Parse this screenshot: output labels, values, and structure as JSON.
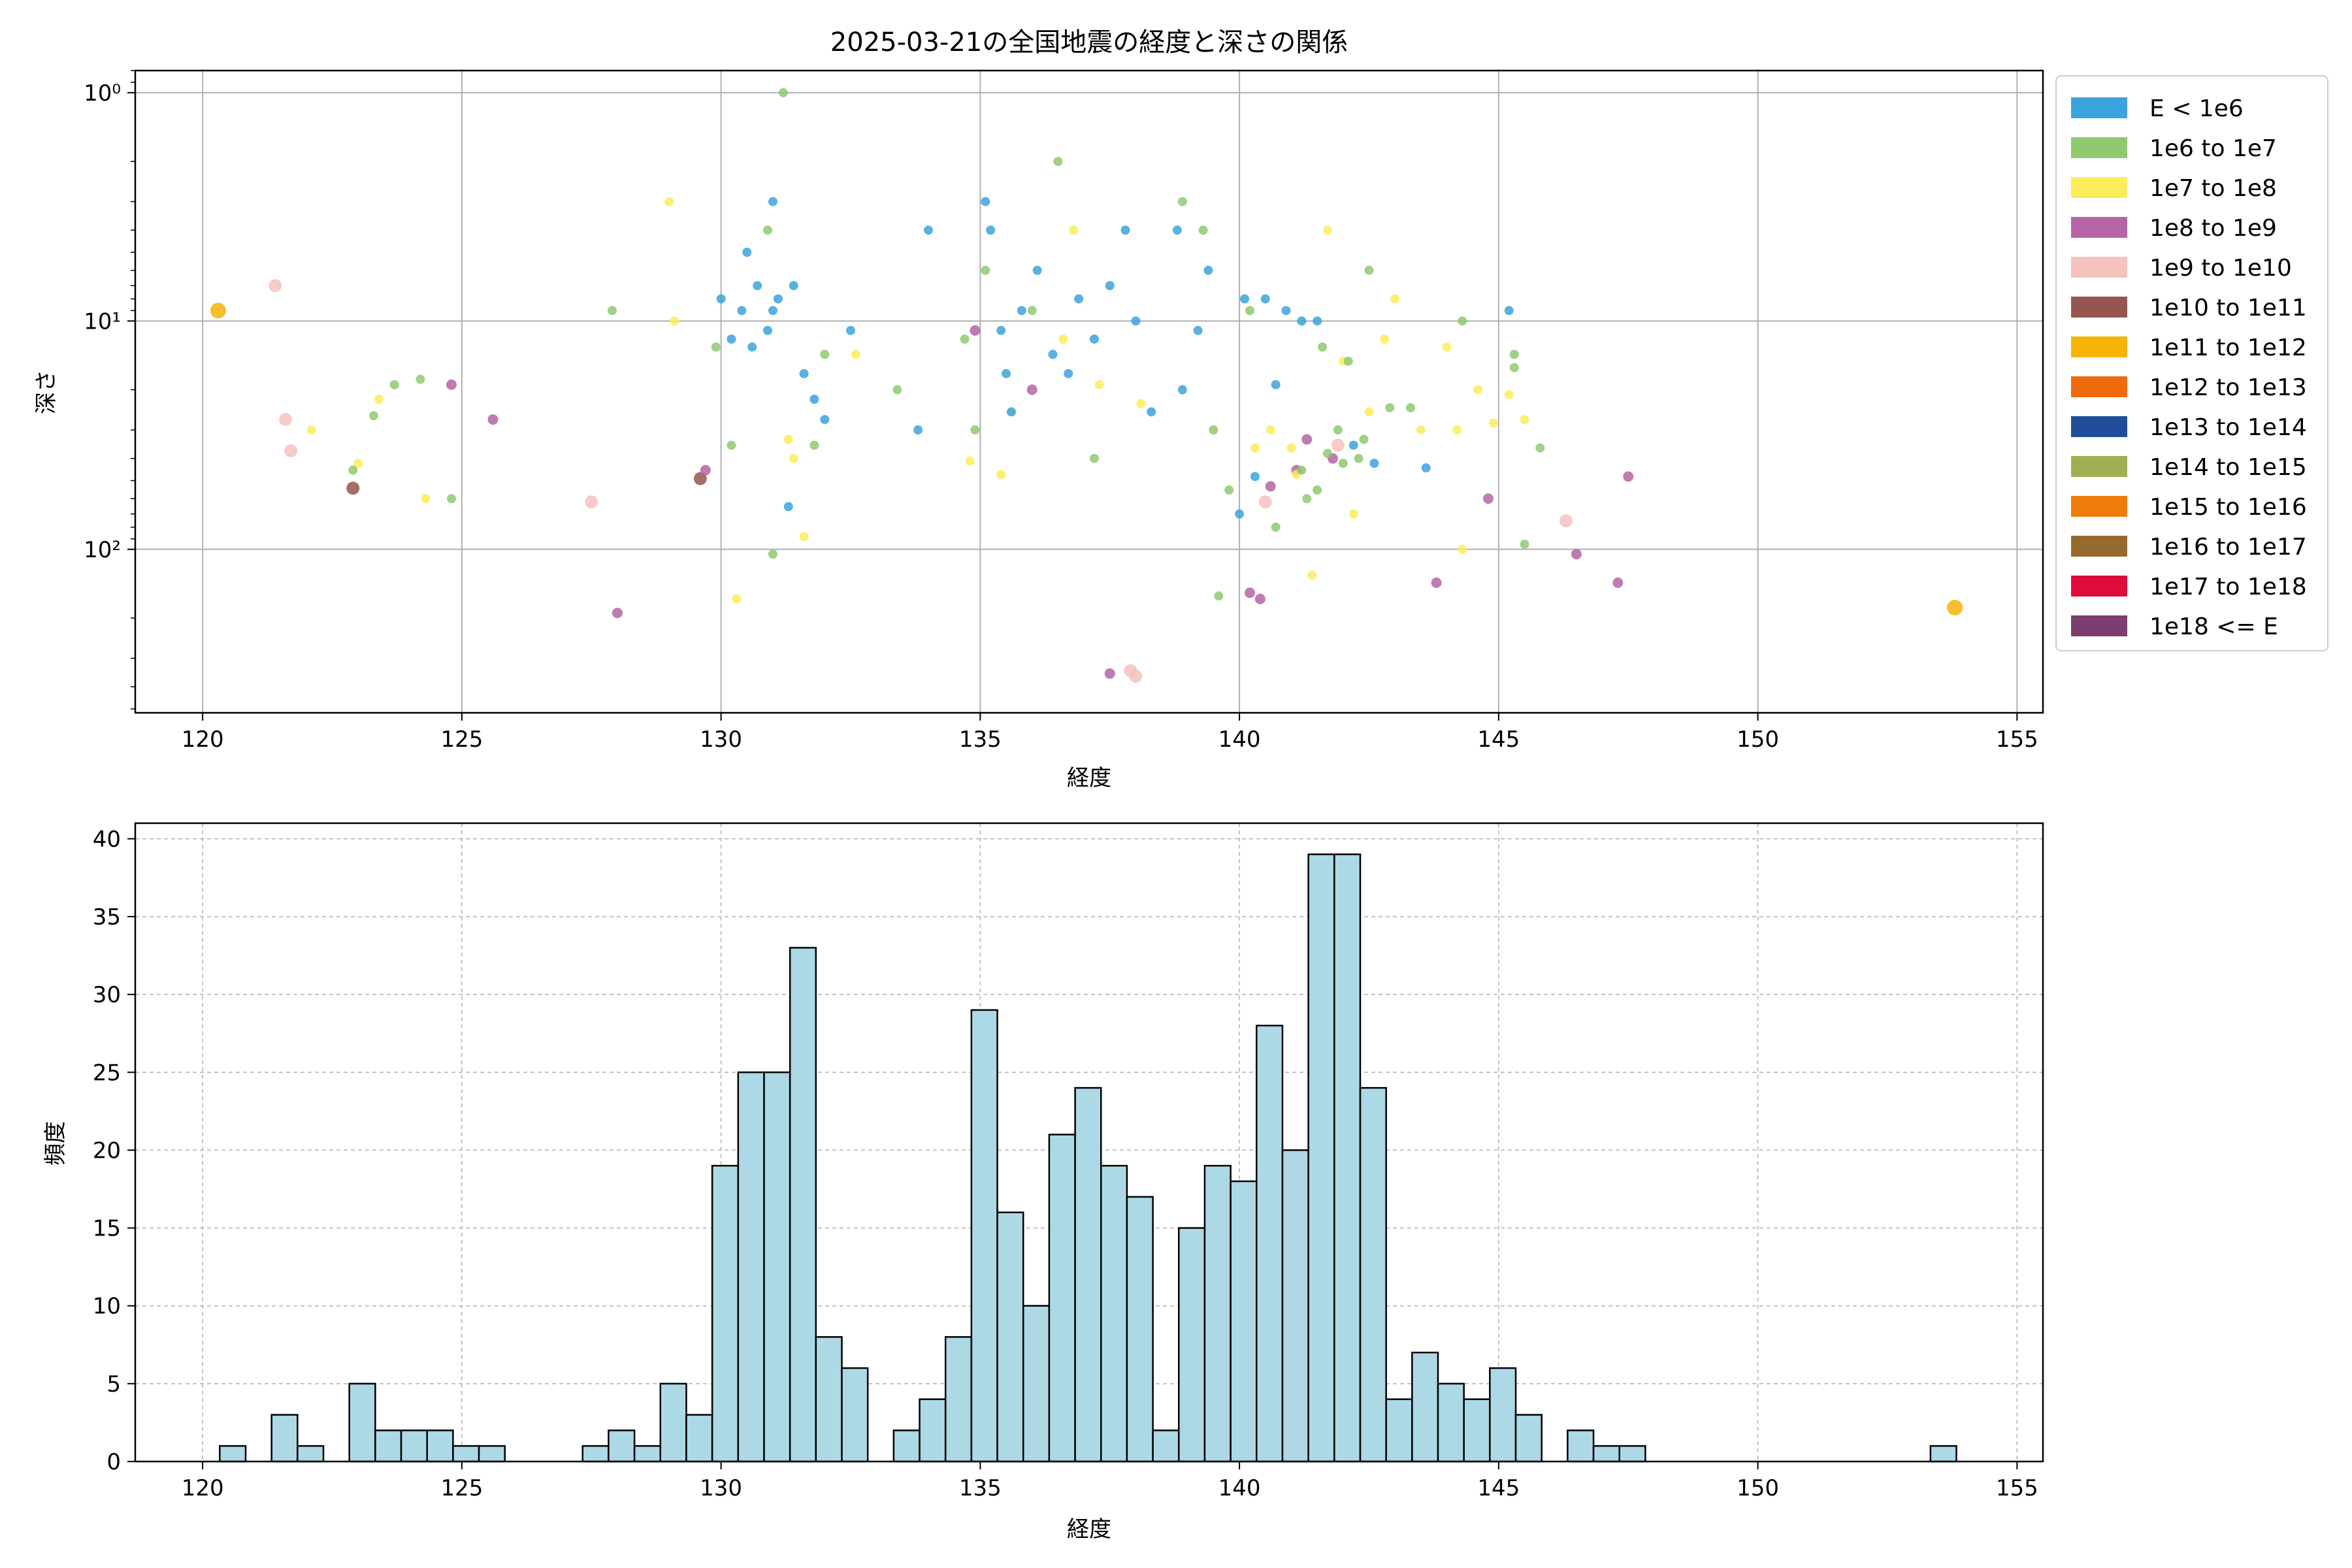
{
  "chart_data": [
    {
      "type": "scatter",
      "title": "2025-03-21の全国地震の経度と深さの関係",
      "xlabel": "経度",
      "ylabel": "深さ",
      "xlim": [
        118.7,
        155.5
      ],
      "ylim": [
        520,
        0.8
      ],
      "y_scale": "log",
      "y_inverted": true,
      "grid": true,
      "x_ticks": [
        120,
        125,
        130,
        135,
        140,
        145,
        150,
        155
      ],
      "y_ticks": [
        {
          "value": 1,
          "label": "10⁰"
        },
        {
          "value": 10,
          "label": "10¹"
        },
        {
          "value": 100,
          "label": "10²"
        }
      ],
      "legend_position": "outside-right",
      "legend": [
        {
          "label": "E < 1e6",
          "color": "#3ba3dd"
        },
        {
          "label": "1e6 to 1e7",
          "color": "#8fc970"
        },
        {
          "label": "1e7 to 1e8",
          "color": "#fbed5a"
        },
        {
          "label": "1e8 to 1e9",
          "color": "#b564a6"
        },
        {
          "label": "1e9 to 1e10",
          "color": "#f6c2bd"
        },
        {
          "label": "1e10 to 1e11",
          "color": "#955650"
        },
        {
          "label": "1e11 to 1e12",
          "color": "#f6b308"
        },
        {
          "label": "1e12 to 1e13",
          "color": "#ef6a0d"
        },
        {
          "label": "1e13 to 1e14",
          "color": "#1f4e99"
        },
        {
          "label": "1e14 to 1e15",
          "color": "#9eb053"
        },
        {
          "label": "1e15 to 1e16",
          "color": "#ef7d0e"
        },
        {
          "label": "1e16 to 1e17",
          "color": "#966a2c"
        },
        {
          "label": "1e17 to 1e18",
          "color": "#de0c3c"
        },
        {
          "label": "1e18 <= E",
          "color": "#7a3f6e"
        }
      ],
      "points": [
        {
          "x": 120.3,
          "y": 9,
          "c": 6,
          "s": 12
        },
        {
          "x": 122.9,
          "y": 54,
          "c": 5,
          "s": 10
        },
        {
          "x": 129.6,
          "y": 49,
          "c": 5,
          "s": 10
        },
        {
          "x": 153.8,
          "y": 180,
          "c": 6,
          "s": 12
        },
        {
          "x": 121.4,
          "y": 7,
          "c": 4,
          "s": 10
        },
        {
          "x": 121.6,
          "y": 27,
          "c": 4,
          "s": 10
        },
        {
          "x": 121.7,
          "y": 37,
          "c": 4,
          "s": 10
        },
        {
          "x": 127.5,
          "y": 62,
          "c": 4,
          "s": 10
        },
        {
          "x": 137.9,
          "y": 340,
          "c": 4,
          "s": 10
        },
        {
          "x": 138.0,
          "y": 360,
          "c": 4,
          "s": 10
        },
        {
          "x": 140.5,
          "y": 62,
          "c": 4,
          "s": 10
        },
        {
          "x": 141.9,
          "y": 35,
          "c": 4,
          "s": 10
        },
        {
          "x": 146.3,
          "y": 75,
          "c": 4,
          "s": 10
        },
        {
          "x": 124.8,
          "y": 19,
          "c": 3,
          "s": 8
        },
        {
          "x": 125.6,
          "y": 27,
          "c": 3,
          "s": 8
        },
        {
          "x": 128.0,
          "y": 190,
          "c": 3,
          "s": 8
        },
        {
          "x": 129.7,
          "y": 45,
          "c": 3,
          "s": 8
        },
        {
          "x": 134.9,
          "y": 11,
          "c": 3,
          "s": 8
        },
        {
          "x": 136.0,
          "y": 20,
          "c": 3,
          "s": 8
        },
        {
          "x": 137.5,
          "y": 350,
          "c": 3,
          "s": 8
        },
        {
          "x": 140.2,
          "y": 155,
          "c": 3,
          "s": 8
        },
        {
          "x": 140.4,
          "y": 165,
          "c": 3,
          "s": 8
        },
        {
          "x": 140.6,
          "y": 53,
          "c": 3,
          "s": 8
        },
        {
          "x": 141.1,
          "y": 45,
          "c": 3,
          "s": 8
        },
        {
          "x": 141.3,
          "y": 33,
          "c": 3,
          "s": 8
        },
        {
          "x": 141.8,
          "y": 40,
          "c": 3,
          "s": 8
        },
        {
          "x": 143.8,
          "y": 140,
          "c": 3,
          "s": 8
        },
        {
          "x": 144.8,
          "y": 60,
          "c": 3,
          "s": 8
        },
        {
          "x": 146.5,
          "y": 105,
          "c": 3,
          "s": 8
        },
        {
          "x": 147.3,
          "y": 140,
          "c": 3,
          "s": 8
        },
        {
          "x": 147.5,
          "y": 48,
          "c": 3,
          "s": 8
        },
        {
          "x": 123.0,
          "y": 42,
          "c": 2,
          "s": 7
        },
        {
          "x": 123.4,
          "y": 22,
          "c": 2,
          "s": 7
        },
        {
          "x": 124.3,
          "y": 60,
          "c": 2,
          "s": 7
        },
        {
          "x": 122.1,
          "y": 30,
          "c": 2,
          "s": 7
        },
        {
          "x": 129.0,
          "y": 3,
          "c": 2,
          "s": 7
        },
        {
          "x": 129.1,
          "y": 10,
          "c": 2,
          "s": 7
        },
        {
          "x": 130.3,
          "y": 165,
          "c": 2,
          "s": 7
        },
        {
          "x": 131.3,
          "y": 33,
          "c": 2,
          "s": 7
        },
        {
          "x": 131.4,
          "y": 40,
          "c": 2,
          "s": 7
        },
        {
          "x": 131.6,
          "y": 88,
          "c": 2,
          "s": 7
        },
        {
          "x": 132.6,
          "y": 14,
          "c": 2,
          "s": 7
        },
        {
          "x": 134.8,
          "y": 41,
          "c": 2,
          "s": 7
        },
        {
          "x": 135.4,
          "y": 47,
          "c": 2,
          "s": 7
        },
        {
          "x": 135.6,
          "y": 25,
          "c": 2,
          "s": 7
        },
        {
          "x": 136.6,
          "y": 12,
          "c": 2,
          "s": 7
        },
        {
          "x": 136.8,
          "y": 4,
          "c": 2,
          "s": 7
        },
        {
          "x": 137.3,
          "y": 19,
          "c": 2,
          "s": 7
        },
        {
          "x": 138.1,
          "y": 23,
          "c": 2,
          "s": 7
        },
        {
          "x": 140.3,
          "y": 36,
          "c": 2,
          "s": 7
        },
        {
          "x": 140.6,
          "y": 30,
          "c": 2,
          "s": 7
        },
        {
          "x": 141.0,
          "y": 36,
          "c": 2,
          "s": 7
        },
        {
          "x": 141.1,
          "y": 47,
          "c": 2,
          "s": 7
        },
        {
          "x": 141.4,
          "y": 130,
          "c": 2,
          "s": 7
        },
        {
          "x": 141.7,
          "y": 4,
          "c": 2,
          "s": 7
        },
        {
          "x": 142.0,
          "y": 15,
          "c": 2,
          "s": 7
        },
        {
          "x": 142.2,
          "y": 70,
          "c": 2,
          "s": 7
        },
        {
          "x": 142.8,
          "y": 12,
          "c": 2,
          "s": 7
        },
        {
          "x": 143.0,
          "y": 8,
          "c": 2,
          "s": 7
        },
        {
          "x": 143.5,
          "y": 30,
          "c": 2,
          "s": 7
        },
        {
          "x": 144.0,
          "y": 13,
          "c": 2,
          "s": 7
        },
        {
          "x": 144.2,
          "y": 30,
          "c": 2,
          "s": 7
        },
        {
          "x": 144.3,
          "y": 100,
          "c": 2,
          "s": 7
        },
        {
          "x": 144.6,
          "y": 20,
          "c": 2,
          "s": 7
        },
        {
          "x": 145.2,
          "y": 21,
          "c": 2,
          "s": 7
        },
        {
          "x": 145.5,
          "y": 27,
          "c": 2,
          "s": 7
        },
        {
          "x": 144.9,
          "y": 28,
          "c": 2,
          "s": 7
        },
        {
          "x": 142.5,
          "y": 25,
          "c": 2,
          "s": 7
        },
        {
          "x": 123.3,
          "y": 26,
          "c": 1,
          "s": 7
        },
        {
          "x": 123.7,
          "y": 19,
          "c": 1,
          "s": 7
        },
        {
          "x": 124.2,
          "y": 18,
          "c": 1,
          "s": 7
        },
        {
          "x": 124.8,
          "y": 60,
          "c": 1,
          "s": 7
        },
        {
          "x": 122.9,
          "y": 45,
          "c": 1,
          "s": 7
        },
        {
          "x": 127.9,
          "y": 9,
          "c": 1,
          "s": 7
        },
        {
          "x": 129.9,
          "y": 13,
          "c": 1,
          "s": 7
        },
        {
          "x": 130.2,
          "y": 35,
          "c": 1,
          "s": 7
        },
        {
          "x": 130.9,
          "y": 4,
          "c": 1,
          "s": 7
        },
        {
          "x": 131.0,
          "y": 105,
          "c": 1,
          "s": 7
        },
        {
          "x": 131.2,
          "y": 1,
          "c": 1,
          "s": 7
        },
        {
          "x": 131.8,
          "y": 35,
          "c": 1,
          "s": 7
        },
        {
          "x": 132.0,
          "y": 14,
          "c": 1,
          "s": 7
        },
        {
          "x": 133.4,
          "y": 20,
          "c": 1,
          "s": 7
        },
        {
          "x": 134.7,
          "y": 12,
          "c": 1,
          "s": 7
        },
        {
          "x": 134.9,
          "y": 30,
          "c": 1,
          "s": 7
        },
        {
          "x": 135.1,
          "y": 6,
          "c": 1,
          "s": 7
        },
        {
          "x": 136.0,
          "y": 9,
          "c": 1,
          "s": 7
        },
        {
          "x": 136.5,
          "y": 2,
          "c": 1,
          "s": 7
        },
        {
          "x": 137.2,
          "y": 40,
          "c": 1,
          "s": 7
        },
        {
          "x": 138.9,
          "y": 3,
          "c": 1,
          "s": 7
        },
        {
          "x": 139.3,
          "y": 4,
          "c": 1,
          "s": 7
        },
        {
          "x": 139.5,
          "y": 30,
          "c": 1,
          "s": 7
        },
        {
          "x": 139.6,
          "y": 160,
          "c": 1,
          "s": 7
        },
        {
          "x": 139.8,
          "y": 55,
          "c": 1,
          "s": 7
        },
        {
          "x": 140.2,
          "y": 9,
          "c": 1,
          "s": 7
        },
        {
          "x": 140.7,
          "y": 80,
          "c": 1,
          "s": 7
        },
        {
          "x": 141.3,
          "y": 60,
          "c": 1,
          "s": 7
        },
        {
          "x": 141.6,
          "y": 13,
          "c": 1,
          "s": 7
        },
        {
          "x": 142.1,
          "y": 15,
          "c": 1,
          "s": 7
        },
        {
          "x": 142.5,
          "y": 6,
          "c": 1,
          "s": 7
        },
        {
          "x": 142.9,
          "y": 24,
          "c": 1,
          "s": 7
        },
        {
          "x": 143.3,
          "y": 24,
          "c": 1,
          "s": 7
        },
        {
          "x": 144.3,
          "y": 10,
          "c": 1,
          "s": 7
        },
        {
          "x": 145.3,
          "y": 14,
          "c": 1,
          "s": 7
        },
        {
          "x": 145.3,
          "y": 16,
          "c": 1,
          "s": 7
        },
        {
          "x": 145.5,
          "y": 95,
          "c": 1,
          "s": 7
        },
        {
          "x": 145.8,
          "y": 36,
          "c": 1,
          "s": 7
        },
        {
          "x": 141.2,
          "y": 45,
          "c": 1,
          "s": 7
        },
        {
          "x": 141.5,
          "y": 55,
          "c": 1,
          "s": 7
        },
        {
          "x": 141.9,
          "y": 30,
          "c": 1,
          "s": 7
        },
        {
          "x": 142.3,
          "y": 40,
          "c": 1,
          "s": 7
        },
        {
          "x": 141.7,
          "y": 38,
          "c": 1,
          "s": 7
        },
        {
          "x": 142.0,
          "y": 42,
          "c": 1,
          "s": 7
        },
        {
          "x": 142.4,
          "y": 33,
          "c": 1,
          "s": 7
        },
        {
          "x": 130.0,
          "y": 8,
          "c": 0,
          "s": 7
        },
        {
          "x": 130.2,
          "y": 12,
          "c": 0,
          "s": 7
        },
        {
          "x": 130.4,
          "y": 9,
          "c": 0,
          "s": 7
        },
        {
          "x": 130.5,
          "y": 5,
          "c": 0,
          "s": 7
        },
        {
          "x": 130.7,
          "y": 7,
          "c": 0,
          "s": 7
        },
        {
          "x": 130.9,
          "y": 11,
          "c": 0,
          "s": 7
        },
        {
          "x": 131.0,
          "y": 3,
          "c": 0,
          "s": 7
        },
        {
          "x": 131.1,
          "y": 8,
          "c": 0,
          "s": 7
        },
        {
          "x": 131.3,
          "y": 65,
          "c": 0,
          "s": 7
        },
        {
          "x": 131.6,
          "y": 17,
          "c": 0,
          "s": 7
        },
        {
          "x": 131.8,
          "y": 22,
          "c": 0,
          "s": 7
        },
        {
          "x": 131.4,
          "y": 7,
          "c": 0,
          "s": 7
        },
        {
          "x": 132.0,
          "y": 27,
          "c": 0,
          "s": 7
        },
        {
          "x": 132.5,
          "y": 11,
          "c": 0,
          "s": 7
        },
        {
          "x": 131.0,
          "y": 9,
          "c": 0,
          "s": 7
        },
        {
          "x": 130.6,
          "y": 13,
          "c": 0,
          "s": 7
        },
        {
          "x": 135.1,
          "y": 3,
          "c": 0,
          "s": 7
        },
        {
          "x": 135.2,
          "y": 4,
          "c": 0,
          "s": 7
        },
        {
          "x": 135.4,
          "y": 11,
          "c": 0,
          "s": 7
        },
        {
          "x": 135.5,
          "y": 17,
          "c": 0,
          "s": 7
        },
        {
          "x": 135.6,
          "y": 25,
          "c": 0,
          "s": 7
        },
        {
          "x": 135.8,
          "y": 9,
          "c": 0,
          "s": 7
        },
        {
          "x": 136.1,
          "y": 6,
          "c": 0,
          "s": 7
        },
        {
          "x": 136.4,
          "y": 14,
          "c": 0,
          "s": 7
        },
        {
          "x": 136.7,
          "y": 17,
          "c": 0,
          "s": 7
        },
        {
          "x": 136.9,
          "y": 8,
          "c": 0,
          "s": 7
        },
        {
          "x": 137.2,
          "y": 12,
          "c": 0,
          "s": 7
        },
        {
          "x": 137.5,
          "y": 7,
          "c": 0,
          "s": 7
        },
        {
          "x": 137.8,
          "y": 4,
          "c": 0,
          "s": 7
        },
        {
          "x": 138.0,
          "y": 10,
          "c": 0,
          "s": 7
        },
        {
          "x": 138.3,
          "y": 25,
          "c": 0,
          "s": 7
        },
        {
          "x": 138.8,
          "y": 4,
          "c": 0,
          "s": 7
        },
        {
          "x": 139.2,
          "y": 11,
          "c": 0,
          "s": 7
        },
        {
          "x": 139.4,
          "y": 6,
          "c": 0,
          "s": 7
        },
        {
          "x": 138.9,
          "y": 20,
          "c": 0,
          "s": 7
        },
        {
          "x": 134.0,
          "y": 4,
          "c": 0,
          "s": 7
        },
        {
          "x": 133.8,
          "y": 30,
          "c": 0,
          "s": 7
        },
        {
          "x": 140.1,
          "y": 8,
          "c": 0,
          "s": 7
        },
        {
          "x": 140.3,
          "y": 48,
          "c": 0,
          "s": 7
        },
        {
          "x": 140.5,
          "y": 8,
          "c": 0,
          "s": 7
        },
        {
          "x": 140.7,
          "y": 19,
          "c": 0,
          "s": 7
        },
        {
          "x": 140.9,
          "y": 9,
          "c": 0,
          "s": 7
        },
        {
          "x": 141.2,
          "y": 10,
          "c": 0,
          "s": 7
        },
        {
          "x": 140.0,
          "y": 70,
          "c": 0,
          "s": 7
        },
        {
          "x": 141.5,
          "y": 10,
          "c": 0,
          "s": 7
        },
        {
          "x": 142.2,
          "y": 35,
          "c": 0,
          "s": 7
        },
        {
          "x": 143.6,
          "y": 44,
          "c": 0,
          "s": 7
        },
        {
          "x": 145.2,
          "y": 9,
          "c": 0,
          "s": 7
        },
        {
          "x": 142.6,
          "y": 42,
          "c": 0,
          "s": 7
        }
      ]
    },
    {
      "type": "bar",
      "xlabel": "経度",
      "ylabel": "頻度",
      "xlim": [
        118.7,
        155.5
      ],
      "ylim": [
        0,
        41
      ],
      "grid": true,
      "x_ticks": [
        120,
        125,
        130,
        135,
        140,
        145,
        150,
        155
      ],
      "y_ticks": [
        0,
        5,
        10,
        15,
        20,
        25,
        30,
        35,
        40
      ],
      "bin_start": 120.33,
      "bin_width": 0.5,
      "bar_color": "#add8e6",
      "edge_color": "#000000",
      "values": [
        1,
        0,
        3,
        1,
        0,
        5,
        2,
        2,
        2,
        1,
        1,
        0,
        0,
        0,
        1,
        2,
        1,
        5,
        3,
        19,
        25,
        25,
        33,
        8,
        6,
        0,
        2,
        4,
        8,
        29,
        16,
        10,
        21,
        24,
        19,
        17,
        2,
        15,
        19,
        18,
        28,
        20,
        39,
        39,
        24,
        4,
        7,
        5,
        4,
        6,
        3,
        0,
        2,
        1,
        1,
        0,
        0,
        0,
        0,
        0,
        0,
        0,
        0,
        0,
        0,
        0,
        1
      ]
    }
  ]
}
